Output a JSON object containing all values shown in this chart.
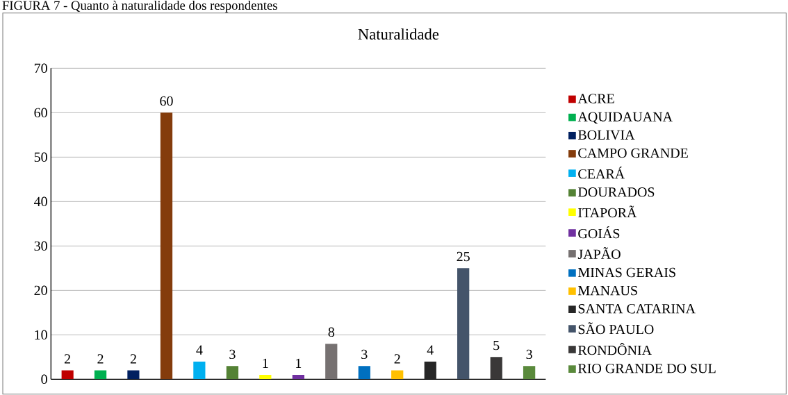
{
  "chart_data": {
    "type": "bar",
    "title": "Naturalidade",
    "annotations": [
      "FIGURA 7 - Quanto à naturalidade dos respondentes"
    ],
    "categories": [
      null,
      null,
      null,
      null,
      null,
      null,
      null,
      null,
      null,
      null,
      null,
      null,
      null,
      null,
      null
    ],
    "series": [
      {
        "name": "ACRE",
        "color": "#c00000",
        "values": [
          2,
          null,
          null,
          null,
          null,
          null,
          null,
          null,
          null,
          null,
          null,
          null,
          null,
          null,
          null
        ]
      },
      {
        "name": "AQUIDAUANA",
        "color": "#00b050",
        "values": [
          null,
          2,
          null,
          null,
          null,
          null,
          null,
          null,
          null,
          null,
          null,
          null,
          null,
          null,
          null
        ]
      },
      {
        "name": "BOLIVIA",
        "color": "#002060",
        "values": [
          null,
          null,
          2,
          null,
          null,
          null,
          null,
          null,
          null,
          null,
          null,
          null,
          null,
          null,
          null
        ]
      },
      {
        "name": "CAMPO GRANDE",
        "color": "#843c0c",
        "values": [
          null,
          null,
          null,
          60,
          null,
          null,
          null,
          null,
          null,
          null,
          null,
          null,
          null,
          null,
          null
        ]
      },
      {
        "name": "CEARÁ",
        "color": "#00b0f0",
        "values": [
          null,
          null,
          null,
          null,
          4,
          null,
          null,
          null,
          null,
          null,
          null,
          null,
          null,
          null,
          null
        ]
      },
      {
        "name": "DOURADOS",
        "color": "#548235",
        "values": [
          null,
          null,
          null,
          null,
          null,
          3,
          null,
          null,
          null,
          null,
          null,
          null,
          null,
          null,
          null
        ]
      },
      {
        "name": "ITAPORÃ",
        "color": "#ffff00",
        "values": [
          null,
          null,
          null,
          null,
          null,
          null,
          1,
          null,
          null,
          null,
          null,
          null,
          null,
          null,
          null
        ]
      },
      {
        "name": "GOIÁS",
        "color": "#7030a0",
        "values": [
          null,
          null,
          null,
          null,
          null,
          null,
          null,
          1,
          null,
          null,
          null,
          null,
          null,
          null,
          null
        ]
      },
      {
        "name": "JAPÃO",
        "color": "#767171",
        "values": [
          null,
          null,
          null,
          null,
          null,
          null,
          null,
          null,
          8,
          null,
          null,
          null,
          null,
          null,
          null
        ]
      },
      {
        "name": "MINAS GERAIS",
        "color": "#0070c0",
        "values": [
          null,
          null,
          null,
          null,
          null,
          null,
          null,
          null,
          null,
          3,
          null,
          null,
          null,
          null,
          null
        ]
      },
      {
        "name": "MANAUS",
        "color": "#ffc000",
        "values": [
          null,
          null,
          null,
          null,
          null,
          null,
          null,
          null,
          null,
          null,
          2,
          null,
          null,
          null,
          null
        ]
      },
      {
        "name": "SANTA CATARINA",
        "color": "#262626",
        "values": [
          null,
          null,
          null,
          null,
          null,
          null,
          null,
          null,
          null,
          null,
          null,
          4,
          null,
          null,
          null
        ]
      },
      {
        "name": "SÃO PAULO",
        "color": "#44546a",
        "values": [
          null,
          null,
          null,
          null,
          null,
          null,
          null,
          null,
          null,
          null,
          null,
          null,
          25,
          null,
          null
        ]
      },
      {
        "name": "RONDÔNIA",
        "color": "#3a3838",
        "values": [
          null,
          null,
          null,
          null,
          null,
          null,
          null,
          null,
          null,
          null,
          null,
          null,
          null,
          5,
          null
        ]
      },
      {
        "name": "RIO GRANDE DO SUL",
        "color": "#5a8a3c",
        "values": [
          null,
          null,
          null,
          null,
          null,
          null,
          null,
          null,
          null,
          null,
          null,
          null,
          null,
          null,
          3
        ]
      }
    ],
    "ylim": [
      0,
      70
    ],
    "yticks": [
      0,
      10,
      20,
      30,
      40,
      50,
      60,
      70
    ],
    "grid": "y",
    "legend": "right",
    "data_labels": true
  }
}
